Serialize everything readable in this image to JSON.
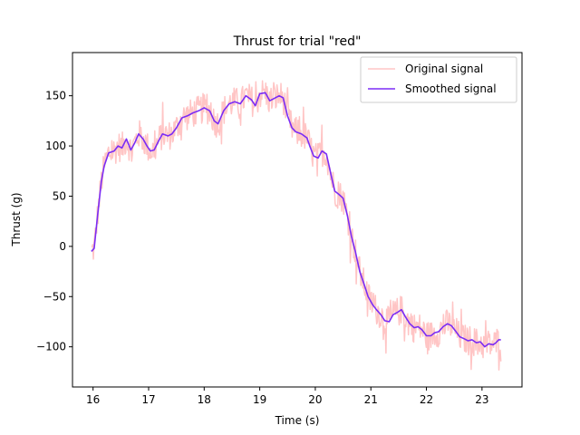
{
  "chart_data": {
    "type": "line",
    "title": "Thrust for trial \"red\"",
    "xlabel": "Time (s)",
    "ylabel": "Thrust (g)",
    "xlim": [
      15.63,
      23.72
    ],
    "ylim": [
      -140,
      193
    ],
    "xticks": [
      16,
      17,
      18,
      19,
      20,
      21,
      22,
      23
    ],
    "yticks": [
      -100,
      -50,
      0,
      50,
      100,
      150
    ],
    "grid": false,
    "legend": "top-right",
    "series": [
      {
        "name": "Original signal",
        "color": "#ffc5c5",
        "kind": "noisy",
        "values_from": "Smoothed signal",
        "noise_amplitude": 15
      },
      {
        "name": "Smoothed signal",
        "color": "#7b2cf5",
        "points": [
          [
            15.97,
            -5
          ],
          [
            16.02,
            -2
          ],
          [
            16.08,
            30
          ],
          [
            16.15,
            65
          ],
          [
            16.2,
            80
          ],
          [
            16.28,
            93
          ],
          [
            16.38,
            95
          ],
          [
            16.45,
            100
          ],
          [
            16.52,
            98
          ],
          [
            16.6,
            107
          ],
          [
            16.68,
            96
          ],
          [
            16.75,
            103
          ],
          [
            16.82,
            112
          ],
          [
            16.9,
            107
          ],
          [
            16.97,
            100
          ],
          [
            17.03,
            95
          ],
          [
            17.1,
            96
          ],
          [
            17.18,
            105
          ],
          [
            17.25,
            112
          ],
          [
            17.35,
            110
          ],
          [
            17.42,
            112
          ],
          [
            17.5,
            118
          ],
          [
            17.6,
            128
          ],
          [
            17.7,
            130
          ],
          [
            17.8,
            133
          ],
          [
            17.9,
            135
          ],
          [
            18.0,
            138
          ],
          [
            18.1,
            135
          ],
          [
            18.18,
            125
          ],
          [
            18.25,
            122
          ],
          [
            18.35,
            135
          ],
          [
            18.45,
            142
          ],
          [
            18.55,
            144
          ],
          [
            18.65,
            142
          ],
          [
            18.75,
            150
          ],
          [
            18.85,
            146
          ],
          [
            18.92,
            140
          ],
          [
            19.0,
            152
          ],
          [
            19.1,
            153
          ],
          [
            19.18,
            145
          ],
          [
            19.25,
            147
          ],
          [
            19.35,
            150
          ],
          [
            19.42,
            148
          ],
          [
            19.5,
            130
          ],
          [
            19.58,
            118
          ],
          [
            19.65,
            114
          ],
          [
            19.75,
            112
          ],
          [
            19.85,
            108
          ],
          [
            19.9,
            100
          ],
          [
            19.97,
            90
          ],
          [
            20.05,
            88
          ],
          [
            20.12,
            95
          ],
          [
            20.2,
            92
          ],
          [
            20.28,
            72
          ],
          [
            20.35,
            55
          ],
          [
            20.42,
            52
          ],
          [
            20.5,
            48
          ],
          [
            20.58,
            30
          ],
          [
            20.65,
            10
          ],
          [
            20.72,
            -5
          ],
          [
            20.8,
            -25
          ],
          [
            20.88,
            -38
          ],
          [
            20.95,
            -50
          ],
          [
            21.03,
            -58
          ],
          [
            21.1,
            -63
          ],
          [
            21.18,
            -68
          ],
          [
            21.25,
            -74
          ],
          [
            21.33,
            -75
          ],
          [
            21.4,
            -68
          ],
          [
            21.47,
            -66
          ],
          [
            21.55,
            -63
          ],
          [
            21.62,
            -70
          ],
          [
            21.7,
            -77
          ],
          [
            21.78,
            -81
          ],
          [
            21.85,
            -80
          ],
          [
            21.92,
            -83
          ],
          [
            22.0,
            -89
          ],
          [
            22.08,
            -89
          ],
          [
            22.15,
            -86
          ],
          [
            22.22,
            -85
          ],
          [
            22.3,
            -80
          ],
          [
            22.38,
            -77
          ],
          [
            22.45,
            -79
          ],
          [
            22.52,
            -84
          ],
          [
            22.6,
            -90
          ],
          [
            22.68,
            -92
          ],
          [
            22.75,
            -94
          ],
          [
            22.82,
            -93
          ],
          [
            22.9,
            -96
          ],
          [
            22.97,
            -95
          ],
          [
            23.05,
            -100
          ],
          [
            23.12,
            -97
          ],
          [
            23.2,
            -98
          ],
          [
            23.25,
            -96
          ],
          [
            23.3,
            -93
          ],
          [
            23.34,
            -93
          ]
        ]
      }
    ]
  }
}
